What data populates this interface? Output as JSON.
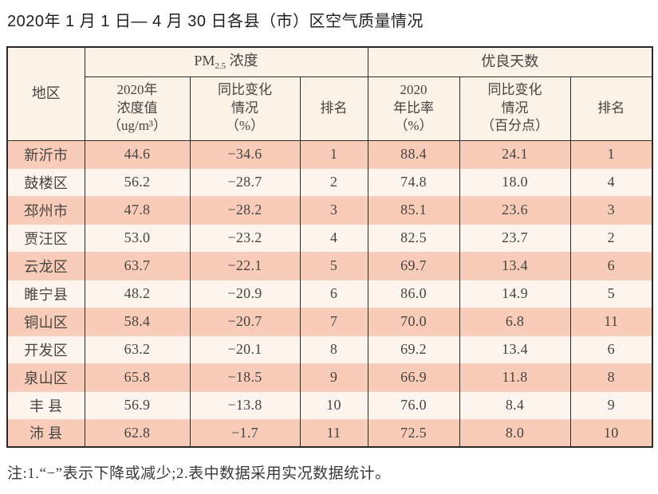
{
  "page": {
    "title": "2020年 1 月 1 日— 4 月 30 日各县（市）区空气质量情况",
    "footnote": "注:1.“−”表示下降或减少;2.表中数据采用实况数据统计。"
  },
  "colors": {
    "row_odd_bg": "#f8ccb8",
    "row_even_bg": "#fdf4ee",
    "header_bg": "#fbf2e8",
    "border_dark": "#2e2826",
    "row_divider": "#ecd2c3",
    "text_main": "#474340"
  },
  "table": {
    "header": {
      "region": "地区",
      "pm_prefix": "PM",
      "pm_sub": "2.5",
      "pm_suffix": " 浓度",
      "good_days_group": "优良天数",
      "pm_value": "2020年\n浓度值\n（ug/m³）",
      "pm_change": "同比变化\n情况\n（%）",
      "pm_rank": "排名",
      "gd_rate": "2020\n年比率\n（%）",
      "gd_change": "同比变化\n情况\n（百分点）",
      "gd_rank": "排名"
    },
    "rows": [
      {
        "region": "新沂市",
        "pm_value": "44.6",
        "pm_change": "−34.6",
        "pm_rank": "1",
        "gd_rate": "88.4",
        "gd_change": "24.1",
        "gd_rank": "1"
      },
      {
        "region": "鼓楼区",
        "pm_value": "56.2",
        "pm_change": "−28.7",
        "pm_rank": "2",
        "gd_rate": "74.8",
        "gd_change": "18.0",
        "gd_rank": "4"
      },
      {
        "region": "邳州市",
        "pm_value": "47.8",
        "pm_change": "−28.2",
        "pm_rank": "3",
        "gd_rate": "85.1",
        "gd_change": "23.6",
        "gd_rank": "3"
      },
      {
        "region": "贾汪区",
        "pm_value": "53.0",
        "pm_change": "−23.2",
        "pm_rank": "4",
        "gd_rate": "82.5",
        "gd_change": "23.7",
        "gd_rank": "2"
      },
      {
        "region": "云龙区",
        "pm_value": "63.7",
        "pm_change": "−22.1",
        "pm_rank": "5",
        "gd_rate": "69.7",
        "gd_change": "13.4",
        "gd_rank": "6"
      },
      {
        "region": "睢宁县",
        "pm_value": "48.2",
        "pm_change": "−20.9",
        "pm_rank": "6",
        "gd_rate": "86.0",
        "gd_change": "14.9",
        "gd_rank": "5"
      },
      {
        "region": "铜山区",
        "pm_value": "58.4",
        "pm_change": "−20.7",
        "pm_rank": "7",
        "gd_rate": "70.0",
        "gd_change": "6.8",
        "gd_rank": "11"
      },
      {
        "region": "开发区",
        "pm_value": "63.2",
        "pm_change": "−20.1",
        "pm_rank": "8",
        "gd_rate": "69.2",
        "gd_change": "13.4",
        "gd_rank": "6"
      },
      {
        "region": "泉山区",
        "pm_value": "65.8",
        "pm_change": "−18.5",
        "pm_rank": "9",
        "gd_rate": "66.9",
        "gd_change": "11.8",
        "gd_rank": "8"
      },
      {
        "region": "丰 县",
        "pm_value": "56.9",
        "pm_change": "−13.8",
        "pm_rank": "10",
        "gd_rate": "76.0",
        "gd_change": "8.4",
        "gd_rank": "9"
      },
      {
        "region": "沛 县",
        "pm_value": "62.8",
        "pm_change": "−1.7",
        "pm_rank": "11",
        "gd_rate": "72.5",
        "gd_change": "8.0",
        "gd_rank": "10"
      }
    ]
  },
  "chart_data": {
    "type": "table",
    "title": "2020年 1 月 1 日— 4 月 30 日各县（市）区空气质量情况",
    "column_groups": [
      {
        "label": "PM2.5 浓度",
        "spans_columns": [
          1,
          2,
          3
        ]
      },
      {
        "label": "优良天数",
        "spans_columns": [
          4,
          5,
          6
        ]
      }
    ],
    "columns": [
      "地区",
      "2020年浓度值（ug/m³）",
      "同比变化情况（%）",
      "排名",
      "2020年比率（%）",
      "同比变化情况（百分点）",
      "排名"
    ],
    "rows": [
      [
        "新沂市",
        44.6,
        -34.6,
        1,
        88.4,
        24.1,
        1
      ],
      [
        "鼓楼区",
        56.2,
        -28.7,
        2,
        74.8,
        18.0,
        4
      ],
      [
        "邳州市",
        47.8,
        -28.2,
        3,
        85.1,
        23.6,
        3
      ],
      [
        "贾汪区",
        53.0,
        -23.2,
        4,
        82.5,
        23.7,
        2
      ],
      [
        "云龙区",
        63.7,
        -22.1,
        5,
        69.7,
        13.4,
        6
      ],
      [
        "睢宁县",
        48.2,
        -20.9,
        6,
        86.0,
        14.9,
        5
      ],
      [
        "铜山区",
        58.4,
        -20.7,
        7,
        70.0,
        6.8,
        11
      ],
      [
        "开发区",
        63.2,
        -20.1,
        8,
        69.2,
        13.4,
        6
      ],
      [
        "泉山区",
        65.8,
        -18.5,
        9,
        66.9,
        11.8,
        8
      ],
      [
        "丰县",
        56.9,
        -13.8,
        10,
        76.0,
        8.4,
        9
      ],
      [
        "沛县",
        62.8,
        -1.7,
        11,
        72.5,
        8.0,
        10
      ]
    ],
    "footnote": "注:1.“−”表示下降或减少;2.表中数据采用实况数据统计。"
  }
}
